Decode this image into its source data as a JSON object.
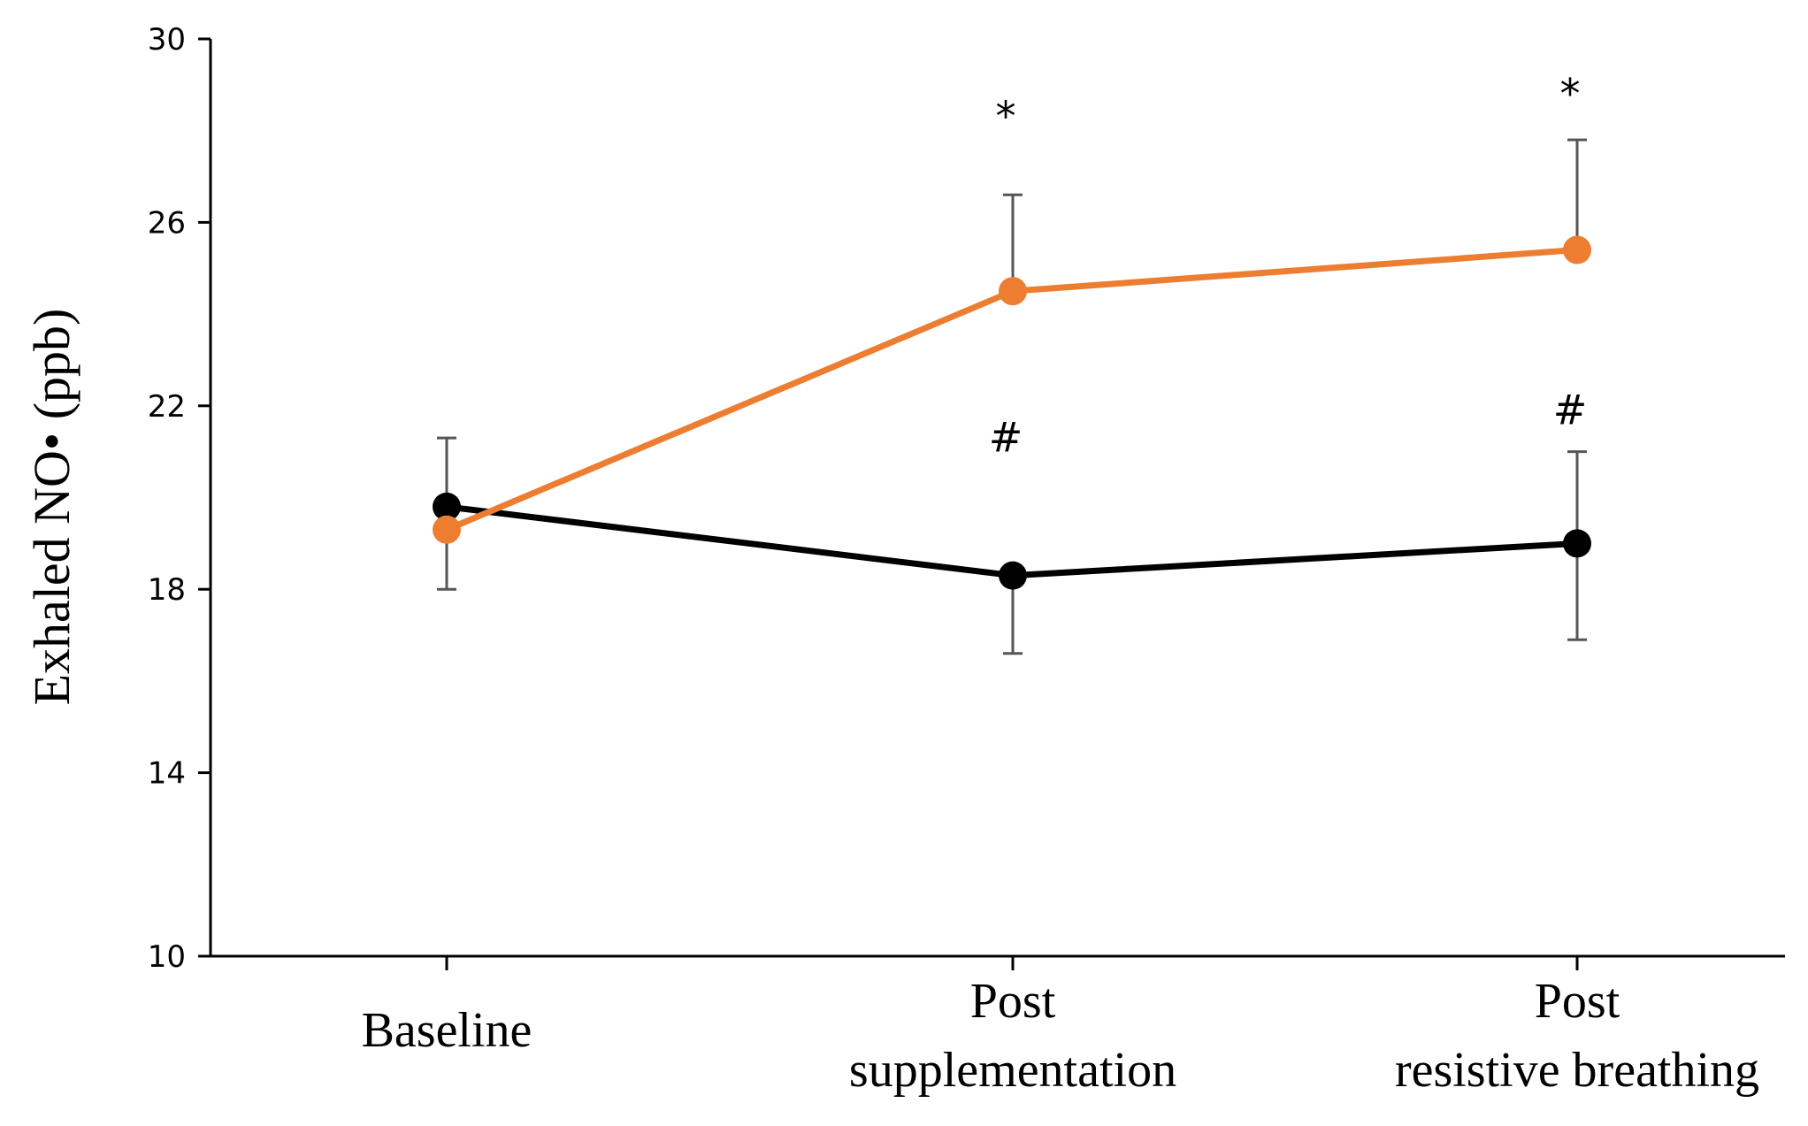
{
  "chart_data": {
    "type": "line",
    "title": "",
    "xlabel": "",
    "ylabel": "Exhaled NO• (ppb)",
    "ylim": [
      10,
      30
    ],
    "yticks": [
      "10",
      "14",
      "18",
      "22",
      "26",
      "30"
    ],
    "categories": [
      [
        "Baseline"
      ],
      [
        "Post",
        "supplementation"
      ],
      [
        "Post",
        "resistive breathing"
      ]
    ],
    "series": [
      {
        "name": "black",
        "color": "#000000",
        "values": [
          19.8,
          18.3,
          19.0
        ],
        "error_upper": [
          21.3,
          null,
          21.0
        ],
        "error_lower": [
          18.0,
          16.6,
          16.9
        ]
      },
      {
        "name": "orange",
        "color": "#ED7D31",
        "values": [
          19.3,
          24.5,
          25.4
        ],
        "error_upper": [
          null,
          26.6,
          27.8
        ],
        "error_lower": [
          null,
          null,
          null
        ]
      }
    ],
    "annotations": [
      {
        "text": "*",
        "category_index": 1,
        "y": 28.0
      },
      {
        "text": "*",
        "category_index": 2,
        "y": 28.5
      },
      {
        "text": "#",
        "category_index": 1,
        "y": 21.0
      },
      {
        "text": "#",
        "category_index": 2,
        "y": 21.6
      }
    ]
  }
}
